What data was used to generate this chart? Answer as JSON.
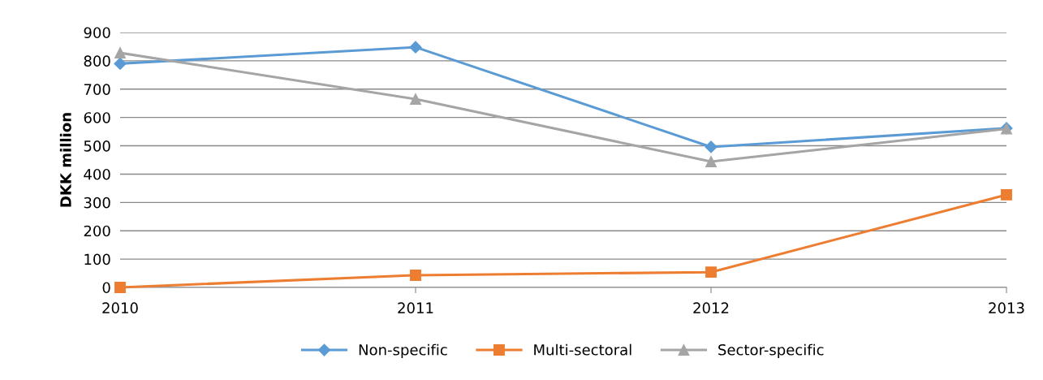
{
  "chart_data": {
    "type": "line",
    "ylabel": "DKK million",
    "categories": [
      "2010",
      "2011",
      "2012",
      "2013"
    ],
    "series": [
      {
        "name": "Non-specific",
        "color": "#5b9bd5",
        "marker": "diamond",
        "values": [
          790,
          848,
          496,
          562
        ]
      },
      {
        "name": "Multi-sectoral",
        "color": "#ed7d31",
        "marker": "square",
        "values": [
          0,
          43,
          54,
          327
        ]
      },
      {
        "name": "Sector-specific",
        "color": "#a5a5a5",
        "marker": "triangle",
        "values": [
          828,
          665,
          444,
          560
        ]
      }
    ],
    "ylim": [
      0,
      900
    ],
    "yticks": [
      0,
      100,
      200,
      300,
      400,
      500,
      600,
      700,
      800,
      900
    ],
    "grid": "y",
    "legend": "bottom"
  }
}
